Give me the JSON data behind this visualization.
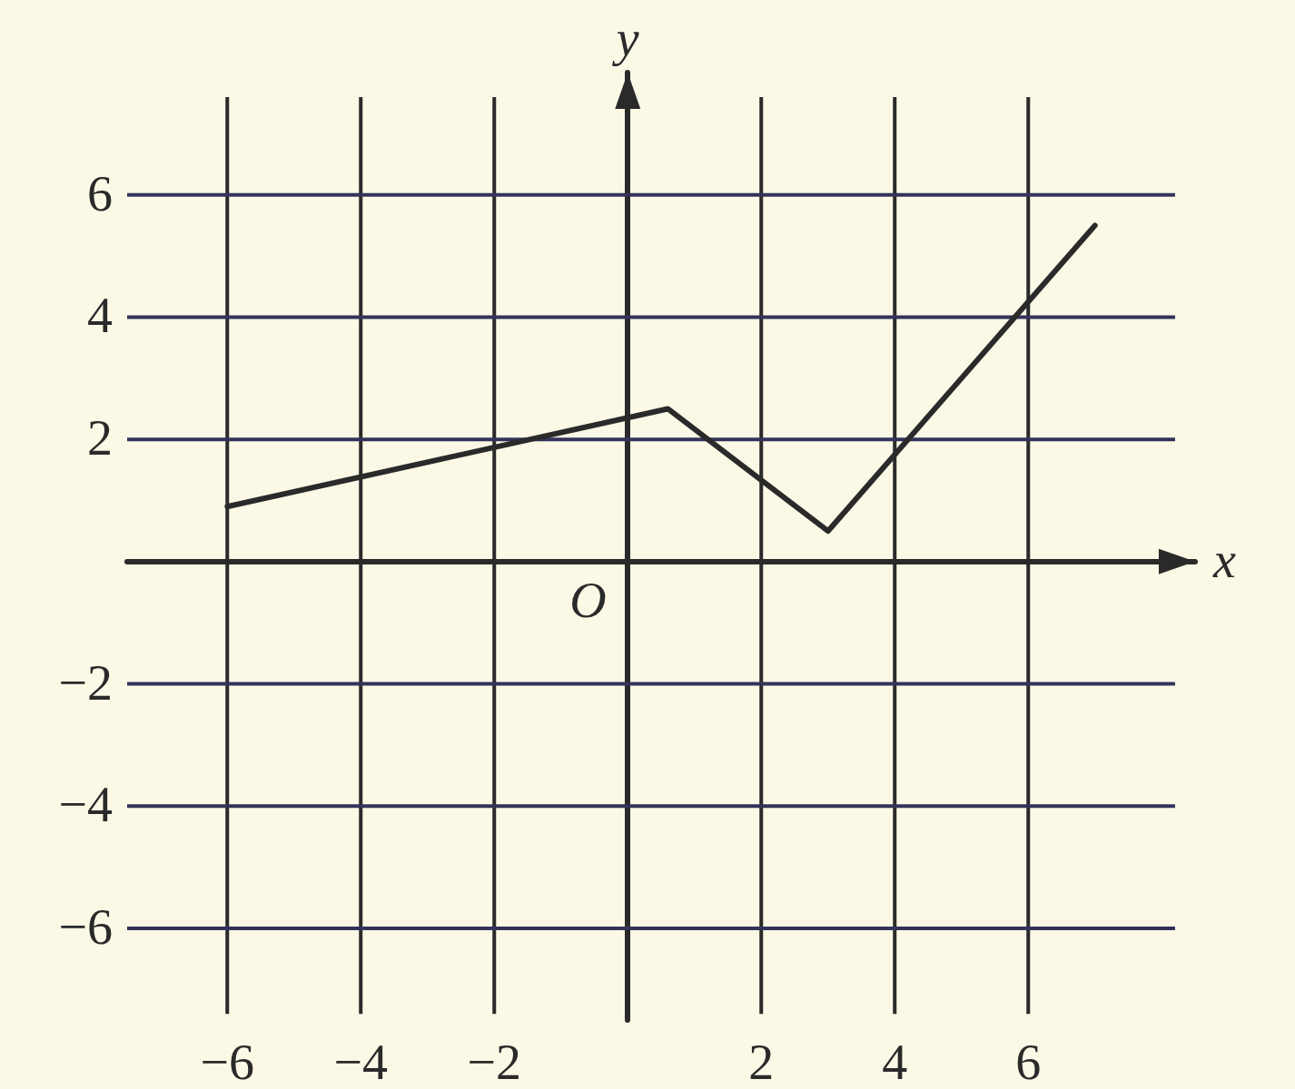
{
  "chart_data": {
    "type": "line",
    "xlabel": "x",
    "ylabel": "y",
    "x": [
      -6,
      0.6,
      3,
      7
    ],
    "series": [
      {
        "color": "#2a2a2a",
        "values": [
          0.9,
          2.5,
          0.5,
          5.5
        ]
      }
    ],
    "xlim": [
      -7.5,
      8.5
    ],
    "ylim": [
      -7.5,
      8
    ],
    "xticks": [
      -6,
      -4,
      -2,
      2,
      4,
      6
    ],
    "yticks": [
      -6,
      -4,
      -2,
      2,
      4,
      6
    ],
    "annotations": [
      "O"
    ],
    "grid": true,
    "marker": "none",
    "line_style": "solid"
  }
}
